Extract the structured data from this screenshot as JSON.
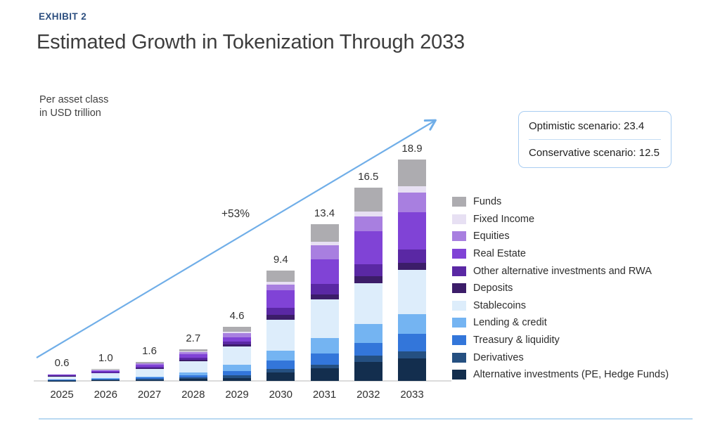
{
  "exhibit_label": "EXHIBIT 2",
  "title": "Estimated Growth in Tokenization Through 2033",
  "axis_note": {
    "line1": "Per asset class",
    "line2": "in USD trillion"
  },
  "scenario_box": {
    "optimistic": "Optimistic scenario: 23.4",
    "conservative": "Conservative scenario: 12.5"
  },
  "growth_label": "+53%",
  "colors": {
    "arrow": "#70aee8",
    "exhibit_label": "#2d4f80",
    "baseline": "#dbdbdb",
    "bottom_divider": "#b9d9f2",
    "scenario_border": "#a9cdf2"
  },
  "chart_data": {
    "type": "bar",
    "stacked": true,
    "title": "Estimated Growth in Tokenization Through 2033",
    "ylabel": "Per asset class in USD trillion",
    "xlabel": "",
    "categories": [
      "2025",
      "2026",
      "2027",
      "2028",
      "2029",
      "2030",
      "2031",
      "2032",
      "2033"
    ],
    "totals": [
      0.6,
      1.0,
      1.6,
      2.7,
      4.6,
      9.4,
      13.4,
      16.5,
      18.9
    ],
    "totals_labels": [
      "0.6",
      "1.0",
      "1.6",
      "2.7",
      "4.6",
      "9.4",
      "13.4",
      "16.5",
      "18.9"
    ],
    "annotations": {
      "growth": "+53%",
      "optimistic_scenario": 23.4,
      "conservative_scenario": 12.5
    },
    "legend_position": "right",
    "series": [
      {
        "name": "Funds",
        "color": "#adacb0",
        "values": [
          0.02,
          0.05,
          0.08,
          0.18,
          0.4,
          0.95,
          1.55,
          2.05,
          2.3
        ]
      },
      {
        "name": "Fixed Income",
        "color": "#e7e0f3",
        "values": [
          0.02,
          0.03,
          0.05,
          0.08,
          0.15,
          0.25,
          0.3,
          0.4,
          0.5
        ]
      },
      {
        "name": "Equities",
        "color": "#a87fe0",
        "values": [
          0.03,
          0.05,
          0.08,
          0.15,
          0.35,
          0.45,
          1.2,
          1.3,
          1.7
        ]
      },
      {
        "name": "Real Estate",
        "color": "#8043d6",
        "values": [
          0.08,
          0.12,
          0.18,
          0.3,
          0.35,
          1.5,
          2.1,
          2.8,
          3.2
        ]
      },
      {
        "name": "Other alternative investments and RWA",
        "color": "#5a28a4",
        "values": [
          0.05,
          0.08,
          0.12,
          0.2,
          0.25,
          0.6,
          0.85,
          1.0,
          1.1
        ]
      },
      {
        "name": "Deposits",
        "color": "#3c1d69",
        "values": [
          0.02,
          0.04,
          0.06,
          0.1,
          0.15,
          0.45,
          0.45,
          0.6,
          0.6
        ]
      },
      {
        "name": "Stablecoins",
        "color": "#ddedfb",
        "values": [
          0.25,
          0.4,
          0.65,
          1.0,
          1.6,
          2.6,
          3.3,
          3.5,
          3.8
        ]
      },
      {
        "name": "Lending & credit",
        "color": "#74b4f2",
        "values": [
          0.03,
          0.06,
          0.1,
          0.22,
          0.5,
          0.85,
          1.3,
          1.6,
          1.7
        ]
      },
      {
        "name": "Treasury & liquidity",
        "color": "#3376da",
        "values": [
          0.05,
          0.08,
          0.12,
          0.2,
          0.35,
          0.75,
          0.95,
          1.1,
          1.5
        ]
      },
      {
        "name": "Derivatives",
        "color": "#255081",
        "values": [
          0.03,
          0.05,
          0.08,
          0.12,
          0.25,
          0.3,
          0.3,
          0.55,
          0.6
        ]
      },
      {
        "name": "Alternative investments (PE, Hedge Funds)",
        "color": "#132e4e",
        "values": [
          0.02,
          0.04,
          0.08,
          0.15,
          0.25,
          0.7,
          1.1,
          1.6,
          1.9
        ]
      }
    ]
  }
}
